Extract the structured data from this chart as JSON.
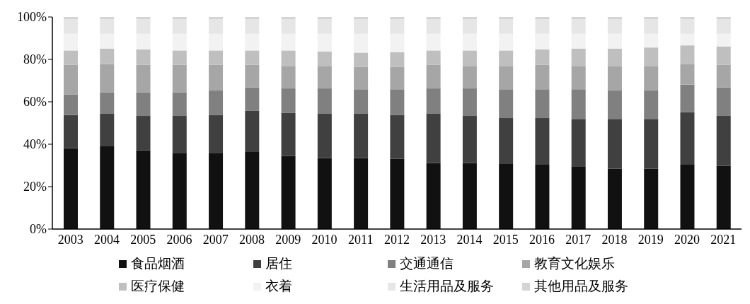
{
  "chart_data": {
    "type": "bar",
    "stacked": true,
    "categories": [
      "2003",
      "2004",
      "2005",
      "2006",
      "2007",
      "2008",
      "2009",
      "2010",
      "2011",
      "2012",
      "2013",
      "2014",
      "2015",
      "2016",
      "2017",
      "2018",
      "2019",
      "2020",
      "2021"
    ],
    "series": [
      {
        "name": "食品烟酒",
        "color": "#111111",
        "values": [
          38.1,
          39.0,
          37.1,
          35.7,
          35.7,
          36.3,
          34.4,
          33.5,
          33.5,
          33.1,
          31.1,
          31.1,
          30.7,
          30.3,
          29.3,
          28.4,
          28.4,
          30.3,
          29.8
        ]
      },
      {
        "name": "居住",
        "color": "#404040",
        "values": [
          15.7,
          15.3,
          16.2,
          17.6,
          18.1,
          19.4,
          20.3,
          20.8,
          20.8,
          20.7,
          23.2,
          22.2,
          21.6,
          22.0,
          22.6,
          23.5,
          23.5,
          24.9,
          23.5
        ]
      },
      {
        "name": "交通通信",
        "color": "#808080",
        "values": [
          9.7,
          10.1,
          11.1,
          11.1,
          11.5,
          11.1,
          11.6,
          12.0,
          11.6,
          12.1,
          12.0,
          13.0,
          13.6,
          13.6,
          14.0,
          13.4,
          13.4,
          12.9,
          13.5
        ]
      },
      {
        "name": "教育文化娱乐",
        "color": "#a6a6a6",
        "values": [
          13.9,
          13.4,
          13.0,
          13.0,
          12.1,
          10.6,
          10.6,
          10.6,
          10.5,
          10.5,
          11.1,
          10.6,
          11.0,
          11.5,
          11.0,
          11.6,
          11.6,
          9.6,
          10.6
        ]
      },
      {
        "name": "医疗保健",
        "color": "#bfbfbf",
        "values": [
          6.8,
          7.3,
          7.3,
          6.8,
          6.8,
          6.8,
          7.3,
          6.8,
          6.8,
          7.0,
          6.8,
          7.3,
          7.3,
          7.3,
          8.2,
          8.2,
          8.7,
          8.9,
          8.7
        ]
      },
      {
        "name": "衣着",
        "color": "#f2f2f2",
        "values": [
          7.9,
          7.0,
          7.4,
          7.9,
          7.9,
          7.9,
          7.9,
          8.4,
          8.9,
          8.7,
          7.9,
          7.9,
          7.9,
          7.4,
          7.0,
          7.0,
          6.5,
          5.5,
          6.0
        ]
      },
      {
        "name": "生活用品及服务",
        "color": "#e6e6e6",
        "values": [
          6.9,
          6.9,
          6.9,
          6.9,
          6.9,
          6.9,
          6.9,
          6.9,
          6.9,
          6.9,
          6.9,
          6.9,
          6.9,
          6.9,
          6.9,
          6.9,
          6.9,
          6.9,
          6.9
        ]
      },
      {
        "name": "其他用品及服务",
        "color": "#d4d4d4",
        "values": [
          1.0,
          1.0,
          1.0,
          1.0,
          1.0,
          1.0,
          1.0,
          1.0,
          1.0,
          1.0,
          1.0,
          1.0,
          1.0,
          1.0,
          1.0,
          1.0,
          1.0,
          1.0,
          1.0
        ]
      }
    ],
    "ylim": [
      0,
      100
    ],
    "yticks": [
      {
        "value": 0,
        "label": "0%"
      },
      {
        "value": 20,
        "label": "20%"
      },
      {
        "value": 40,
        "label": "40%"
      },
      {
        "value": 60,
        "label": "60%"
      },
      {
        "value": 80,
        "label": "80%"
      },
      {
        "value": 100,
        "label": "100%"
      }
    ],
    "grid": false,
    "legend": "bottom"
  }
}
